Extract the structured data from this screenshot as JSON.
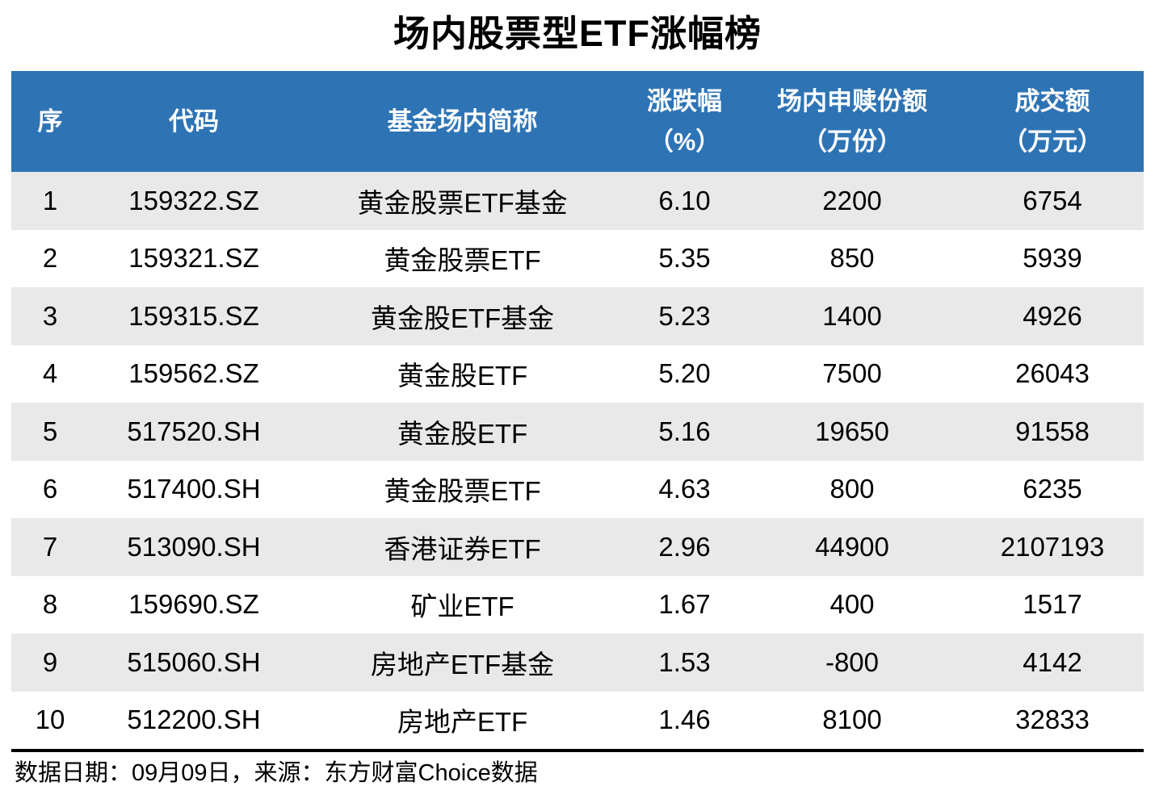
{
  "title": "场内股票型ETF涨幅榜",
  "table": {
    "columns": [
      {
        "label": "序",
        "unit": ""
      },
      {
        "label": "代码",
        "unit": ""
      },
      {
        "label": "基金场内简称",
        "unit": ""
      },
      {
        "label": "涨跌幅",
        "unit": "（%）"
      },
      {
        "label": "场内申赎份额",
        "unit": "（万份）"
      },
      {
        "label": "成交额",
        "unit": "（万元）"
      }
    ],
    "rows": [
      [
        "1",
        "159322.SZ",
        "黄金股票ETF基金",
        "6.10",
        "2200",
        "6754"
      ],
      [
        "2",
        "159321.SZ",
        "黄金股票ETF",
        "5.35",
        "850",
        "5939"
      ],
      [
        "3",
        "159315.SZ",
        "黄金股ETF基金",
        "5.23",
        "1400",
        "4926"
      ],
      [
        "4",
        "159562.SZ",
        "黄金股ETF",
        "5.20",
        "7500",
        "26043"
      ],
      [
        "5",
        "517520.SH",
        "黄金股ETF",
        "5.16",
        "19650",
        "91558"
      ],
      [
        "6",
        "517400.SH",
        "黄金股票ETF",
        "4.63",
        "800",
        "6235"
      ],
      [
        "7",
        "513090.SH",
        "香港证券ETF",
        "2.96",
        "44900",
        "2107193"
      ],
      [
        "8",
        "159690.SZ",
        "矿业ETF",
        "1.67",
        "400",
        "1517"
      ],
      [
        "9",
        "515060.SH",
        "房地产ETF基金",
        "1.53",
        "-800",
        "4142"
      ],
      [
        "10",
        "512200.SH",
        "房地产ETF",
        "1.46",
        "8100",
        "32833"
      ]
    ]
  },
  "footer": {
    "text": "数据日期：09月09日，来源：东方财富Choice数据"
  },
  "colors": {
    "header_bg": "#2E74B5",
    "header_text": "#FFFFFF",
    "row_stripe": "#E9E9E9",
    "rule": "#000000"
  },
  "chart_data": {
    "type": "table",
    "title": "场内股票型ETF涨幅榜",
    "columns": [
      "序",
      "代码",
      "基金场内简称",
      "涨跌幅（%）",
      "场内申赎份额（万份）",
      "成交额（万元）"
    ],
    "rows": [
      [
        1,
        "159322.SZ",
        "黄金股票ETF基金",
        6.1,
        2200,
        6754
      ],
      [
        2,
        "159321.SZ",
        "黄金股票ETF",
        5.35,
        850,
        5939
      ],
      [
        3,
        "159315.SZ",
        "黄金股ETF基金",
        5.23,
        1400,
        4926
      ],
      [
        4,
        "159562.SZ",
        "黄金股ETF",
        5.2,
        7500,
        26043
      ],
      [
        5,
        "517520.SH",
        "黄金股ETF",
        5.16,
        19650,
        91558
      ],
      [
        6,
        "517400.SH",
        "黄金股票ETF",
        4.63,
        800,
        6235
      ],
      [
        7,
        "513090.SH",
        "香港证券ETF",
        2.96,
        44900,
        2107193
      ],
      [
        8,
        "159690.SZ",
        "矿业ETF",
        1.67,
        400,
        1517
      ],
      [
        9,
        "515060.SH",
        "房地产ETF基金",
        1.53,
        -800,
        4142
      ],
      [
        10,
        "512200.SH",
        "房地产ETF",
        1.46,
        8100,
        32833
      ]
    ],
    "footnote": "数据日期：09月09日，来源：东方财富Choice数据",
    "layout": {
      "striped_rows": "odd-gray",
      "header_color": "#2E74B5"
    }
  }
}
